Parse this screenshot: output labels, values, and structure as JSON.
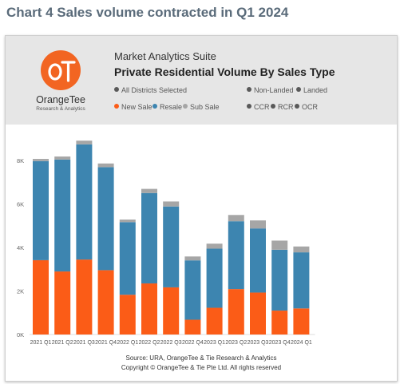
{
  "page_title": "Chart 4 Sales volume contracted in Q1 2024",
  "brand": {
    "name": "OrangeTee",
    "tagline": "Research & Analytics",
    "logo_text": "OT"
  },
  "header": {
    "suite": "Market Analytics Suite",
    "title": "Private Residential Volume By Sales Type"
  },
  "filters": {
    "districts": "All Districts Selected",
    "non_landed": "Non-Landed",
    "landed": "Landed",
    "new_sale": "New Sale",
    "resale": "Resale",
    "sub_sale": "Sub Sale",
    "ccr": "CCR",
    "rcr": "RCR",
    "ocr": "OCR"
  },
  "colors": {
    "new_sale": "#fb5c17",
    "resale": "#3d85b0",
    "sub_sale": "#a6a6a6",
    "inactive": "#595959",
    "header_bg": "#e6e6e6"
  },
  "footer": {
    "source": "Source: URA, OrangeTee & Tie Research & Analytics",
    "copyright": "Copyright © OrangeTee & Tie Pte Ltd. All rights reserved"
  },
  "chart_data": {
    "type": "bar",
    "stacked": true,
    "categories": [
      "2021 Q1",
      "2021 Q2",
      "2021 Q3",
      "2021 Q4",
      "2022 Q1",
      "2022 Q2",
      "2022 Q3",
      "2022 Q4",
      "2023 Q1",
      "2023 Q2",
      "2023 Q3",
      "2023 Q4",
      "2024 Q1"
    ],
    "series": [
      {
        "name": "New Sale",
        "values": [
          3420,
          2900,
          3450,
          2960,
          1830,
          2350,
          2170,
          680,
          1230,
          2090,
          1930,
          1100,
          1200
        ]
      },
      {
        "name": "Resale",
        "values": [
          4560,
          5150,
          5300,
          4740,
          3340,
          4160,
          3720,
          2730,
          2720,
          3120,
          2950,
          2800,
          2580
        ]
      },
      {
        "name": "Sub Sale",
        "values": [
          100,
          140,
          170,
          170,
          120,
          190,
          230,
          180,
          230,
          290,
          370,
          420,
          270
        ]
      }
    ],
    "y_ticks": [
      "0K",
      "2K",
      "4K",
      "6K",
      "8K"
    ],
    "ylim": [
      0,
      9000
    ],
    "grid": false,
    "legend": "top-left"
  }
}
